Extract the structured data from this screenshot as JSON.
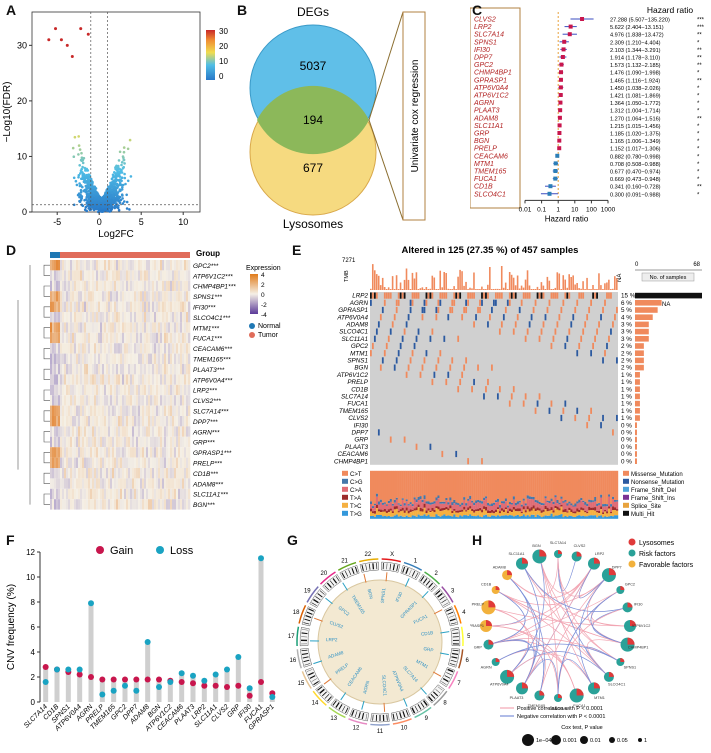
{
  "panels": {
    "A": {
      "label": "A",
      "xlabel": "Log2FC",
      "ylabel": "−Log10(FDR)",
      "x_ticks": [
        "-5",
        "0",
        "5",
        "10"
      ],
      "y_ticks": [
        "0",
        "10",
        "20",
        "30"
      ],
      "colorbar_ticks": [
        "30",
        "20",
        "10",
        "0"
      ]
    },
    "B": {
      "label": "B",
      "title": "DEGs",
      "deg_only": "5037",
      "overlap": "194",
      "lys_only": "677",
      "bottom_label": "Lysosomes",
      "method_label": "Univariate cox regression"
    },
    "C": {
      "label": "C",
      "header": "Hazard ratio",
      "xlabel": "Hazard ratio",
      "x_ticks": [
        "0.01",
        "0.1",
        "1",
        "10",
        "100",
        "1000"
      ],
      "genes": [
        "CLVS2",
        "LRP2",
        "SLC7A14",
        "SPNS1",
        "IFI30",
        "DPP7",
        "GPC2",
        "CHMP4BP1",
        "GPRASP1",
        "ATP6V0A4",
        "ATP6V1C2",
        "AGRN",
        "PLAAT3",
        "ADAM8",
        "SLC11A1",
        "GRP",
        "BGN",
        "PRELP",
        "CEACAM6",
        "MTM1",
        "TMEM165",
        "FUCA1",
        "CD1B",
        "SLCO4C1"
      ],
      "hr_text": [
        "27.288 (5.507−135.220)",
        "5.622 (2.404−13.151)",
        "4.976 (1.838−13.472)",
        "2.309 (1.210−4.404)",
        "2.103 (1.344−3.291)",
        "1.914 (1.178−3.110)",
        "1.573 (1.132−2.185)",
        "1.476 (1.090−1.998)",
        "1.465 (1.116−1.924)",
        "1.450 (1.038−2.026)",
        "1.421 (1.081−1.869)",
        "1.364 (1.050−1.772)",
        "1.312 (1.004−1.714)",
        "1.270 (1.064−1.516)",
        "1.215 (1.015−1.456)",
        "1.185 (1.020−1.375)",
        "1.165 (1.006−1.349)",
        "1.152 (1.017−1.306)",
        "0.882 (0.780−0.998)",
        "0.708 (0.508−0.988)",
        "0.677 (0.470−0.974)",
        "0.669 (0.473−0.948)",
        "0.341 (0.160−0.728)",
        "0.300 (0.091−0.988)"
      ],
      "hr": [
        27.288,
        5.622,
        4.976,
        2.309,
        2.103,
        1.914,
        1.573,
        1.476,
        1.465,
        1.45,
        1.421,
        1.364,
        1.312,
        1.27,
        1.215,
        1.185,
        1.165,
        1.152,
        0.882,
        0.708,
        0.677,
        0.669,
        0.341,
        0.3
      ],
      "lo": [
        5.507,
        2.404,
        1.838,
        1.21,
        1.344,
        1.178,
        1.132,
        1.09,
        1.116,
        1.038,
        1.081,
        1.05,
        1.004,
        1.064,
        1.015,
        1.02,
        1.006,
        1.017,
        0.78,
        0.508,
        0.47,
        0.473,
        0.16,
        0.091
      ],
      "hi": [
        135.22,
        13.151,
        13.472,
        4.404,
        3.291,
        3.11,
        2.185,
        1.998,
        1.924,
        2.026,
        1.869,
        1.772,
        1.714,
        1.516,
        1.456,
        1.375,
        1.349,
        1.306,
        0.998,
        0.988,
        0.974,
        0.948,
        0.728,
        0.988
      ],
      "sig": [
        "***",
        "***",
        "**",
        "*",
        "**",
        "**",
        "**",
        "*",
        "**",
        "*",
        "*",
        "*",
        "*",
        "**",
        "*",
        "*",
        "*",
        "*",
        "*",
        "*",
        "*",
        "*",
        "**",
        "*"
      ]
    },
    "D": {
      "label": "D",
      "group_title": "Group",
      "expr_title": "Expression",
      "expr_ticks": [
        "4",
        "2",
        "0",
        "-2",
        "-4"
      ],
      "legend": [
        "Normal",
        "Tumor"
      ],
      "genes": [
        "GPC2***",
        "ATP6V1C2***",
        "CHMP4BP1***",
        "SPNS1***",
        "IFI30***",
        "SLCO4C1***",
        "MTM1***",
        "FUCA1***",
        "CEACAM6***",
        "TMEM165***",
        "PLAAT3***",
        "ATP6V0A4***",
        "LRP2***",
        "CLVS2***",
        "SLC7A14***",
        "DPP7***",
        "AGRN***",
        "GRP***",
        "GPRASP1***",
        "PRELP***",
        "CD1B***",
        "ADAM8***",
        "SLC11A1***",
        "BGN***"
      ]
    },
    "E": {
      "label": "E",
      "title": "Altered in 125 (27.35 %) of 457 samples",
      "tmb_max": "7271",
      "tmb_label": "TMB",
      "na_label": "NA",
      "bar_ticks": [
        "0",
        "68"
      ],
      "bar_label": "No. of samples",
      "na2": "NA",
      "genes": [
        "LRP2",
        "AGRN",
        "GPRASP1",
        "ATP6V0A4",
        "ADAM8",
        "SLCO4C1",
        "SLC11A1",
        "GPC2",
        "MTM1",
        "SPNS1",
        "BGN",
        "ATP6V1C2",
        "PRELP",
        "CD1B",
        "SLC7A14",
        "FUCA1",
        "TMEM165",
        "CLVS2",
        "IFI30",
        "DPP7",
        "GRP",
        "PLAAT3",
        "CEACAM6",
        "CHMP4BP1"
      ],
      "pcts": [
        "15 %",
        "6 %",
        "5 %",
        "4 %",
        "3 %",
        "3 %",
        "3 %",
        "2 %",
        "2 %",
        "2 %",
        "2 %",
        "1 %",
        "1 %",
        "1 %",
        "1 %",
        "1 %",
        "1 %",
        "1 %",
        "0 %",
        "0 %",
        "0 %",
        "0 %",
        "0 %",
        "0 %"
      ],
      "counts": [
        68,
        27,
        23,
        18,
        14,
        14,
        14,
        9,
        9,
        9,
        9,
        5,
        5,
        5,
        5,
        5,
        5,
        5,
        2,
        2,
        2,
        2,
        2,
        2
      ],
      "titv": [
        "C>T",
        "C>G",
        "C>A",
        "T>A",
        "T>C",
        "T>G"
      ],
      "titv_colors": [
        "#f08a5d",
        "#4477aa",
        "#e06c75",
        "#9c2c2c",
        "#f5b041",
        "#3498db"
      ],
      "var_types": [
        "Missense_Mutation",
        "Nonsense_Mutation",
        "Frame_Shift_Del",
        "Frame_Shift_Ins",
        "Splice_Site",
        "Multi_Hit"
      ],
      "var_colors": [
        "#f08a5d",
        "#2c5aa0",
        "#4fa3d9",
        "#7b3294",
        "#e8a33d",
        "#111111"
      ]
    },
    "F": {
      "label": "F",
      "ylabel": "CNV frequency (%)",
      "legend_gain": "Gain",
      "legend_loss": "Loss",
      "y_ticks": [
        "0",
        "2",
        "4",
        "6",
        "8",
        "10",
        "12"
      ],
      "gain_color": "#c8164d",
      "loss_color": "#1aa3c2"
    },
    "G": {
      "label": "G",
      "chrom": [
        "X",
        "1",
        "2",
        "3",
        "4",
        "5",
        "6",
        "7",
        "8",
        "9",
        "10",
        "11",
        "12",
        "13",
        "14",
        "15",
        "16",
        "17",
        "18",
        "19",
        "20",
        "21",
        "22"
      ],
      "genes": [
        "SPNS1",
        "IFI30",
        "GPRASP1",
        "FUCA1",
        "CD1B",
        "GRP",
        "MTM1",
        "SLC7A14",
        "ATP6V0A4",
        "SLCO4C1",
        "AGRN",
        "CEACAM6",
        "PRELP",
        "ADAM8",
        "LRP2",
        "CLVS2",
        "GPC2",
        "TMEM165",
        "BGN"
      ]
    },
    "H": {
      "label": "H",
      "legend": [
        "Lysosomes",
        "Risk factors",
        "Favorable factors"
      ],
      "legend_colors": [
        "#e03a3a",
        "#2aa198",
        "#f2b13c"
      ],
      "pos_corr": "Positive correlation with P < 0.0001",
      "neg_corr": "Negative correlation with P < 0.0001",
      "cox_title": "Cox test, P value",
      "cox_levels": [
        "1e−04",
        "0.001",
        "0.01",
        "0.05",
        "1"
      ],
      "nodes": [
        "SLC7A14",
        "CLVS2",
        "LRP2",
        "DPP7",
        "GPC2",
        "IFI30",
        "ATP6V1C2",
        "CHMP4BP1",
        "SPNS1",
        "SLCO4C1",
        "MTM1",
        "FUCA1",
        "CEACAM6",
        "TMEM165",
        "PLAAT3",
        "ATP6V0A4",
        "AGRN",
        "GRP",
        "GPRASP1",
        "PRELP",
        "CD1B",
        "ADAM8",
        "SLC11A1",
        "BGN"
      ]
    }
  },
  "chart_data": [
    {
      "type": "scatter",
      "title": "",
      "xlabel": "Log2FC",
      "ylabel": "−Log10(FDR)",
      "xlim": [
        -8,
        12
      ],
      "ylim": [
        0,
        36
      ],
      "note": "volcano plot; ~thousands of genes; points coloured by -log10(FDR) (0–30)"
    },
    {
      "type": "table",
      "title": "Univariate cox regression forest plot",
      "xlabel": "Hazard ratio"
    },
    {
      "type": "bar",
      "title": "CNV frequency",
      "ylabel": "CNV frequency (%)",
      "ylim": [
        0,
        12
      ],
      "categories": [
        "SLC7A14",
        "CD1B",
        "SPNS1",
        "ATP6V0A4",
        "AGRN",
        "PRELP",
        "TMEM165",
        "GPC2",
        "DPP7",
        "ADAM8",
        "BGN",
        "ATP6V1C2",
        "CEACAM6",
        "PLAAT3",
        "LRP2",
        "SLC11A1",
        "CLVS2",
        "GRP",
        "IFI30",
        "FUCA1",
        "GPRASP1"
      ],
      "series": [
        {
          "name": "Gain",
          "values": [
            2.8,
            2.6,
            2.4,
            2.2,
            2.0,
            1.8,
            1.8,
            1.8,
            1.8,
            1.8,
            1.8,
            1.7,
            1.6,
            1.5,
            1.3,
            1.3,
            1.2,
            1.3,
            0.5,
            1.6,
            0.7
          ]
        },
        {
          "name": "Loss",
          "values": [
            1.6,
            2.6,
            2.6,
            2.6,
            7.9,
            0.6,
            0.9,
            1.3,
            0.9,
            4.8,
            1.2,
            1.6,
            2.3,
            2.1,
            1.7,
            2.2,
            2.6,
            3.6,
            1.1,
            11.5,
            0.4
          ]
        }
      ]
    }
  ]
}
